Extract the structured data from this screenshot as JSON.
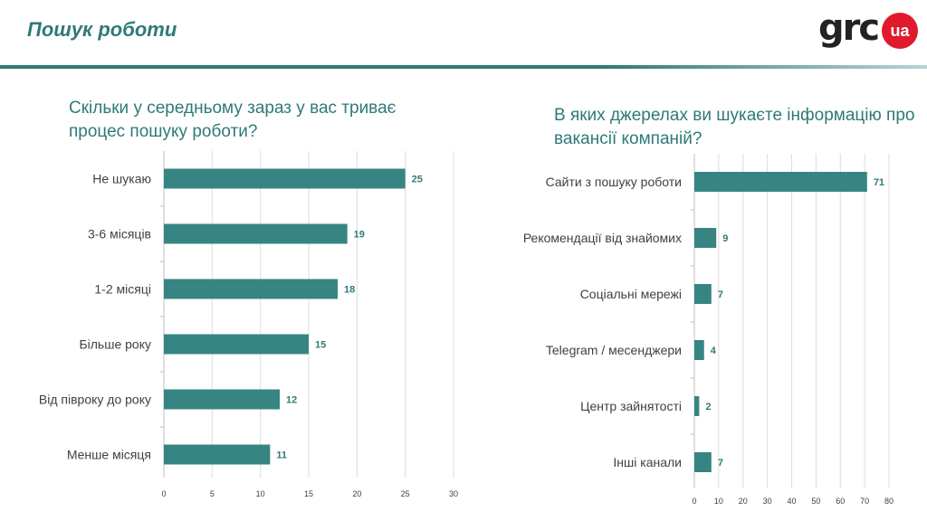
{
  "header": {
    "title": "Пошук роботи",
    "logo": {
      "text": "grc",
      "badge": "ua"
    },
    "accent_color": "#2e7a78",
    "logo_badge_color": "#e0192c"
  },
  "chart_data": [
    {
      "type": "bar",
      "orientation": "horizontal",
      "title": "Скільки у середньому зараз у вас триває процес пошуку роботи?",
      "categories": [
        "Не шукаю",
        "3-6 місяців",
        "1-2 місяці",
        "Більше року",
        "Від півроку до року",
        "Менше місяця"
      ],
      "values": [
        25,
        19,
        18,
        15,
        12,
        11
      ],
      "xlim": [
        0,
        30
      ],
      "xticks": [
        0,
        5,
        10,
        15,
        20,
        25,
        30
      ],
      "grid": true,
      "bar_color": "#378582"
    },
    {
      "type": "bar",
      "orientation": "horizontal",
      "title": "В яких джерелах ви шукаєте інформацію про вакансії компаній?",
      "categories": [
        "Сайти з пошуку роботи",
        "Рекомендації від знайомих",
        "Соціальні мережі",
        "Telegram / месенджери",
        "Центр зайнятості",
        "Інші канали"
      ],
      "values": [
        71,
        9,
        7,
        4,
        2,
        7
      ],
      "xlim": [
        0,
        80
      ],
      "xticks": [
        0,
        10,
        20,
        30,
        40,
        50,
        60,
        70,
        80
      ],
      "grid": true,
      "bar_color": "#378582"
    }
  ]
}
